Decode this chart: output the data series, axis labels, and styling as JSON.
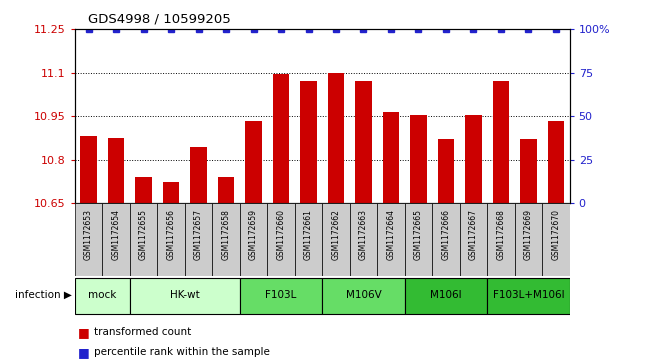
{
  "title": "GDS4998 / 10599205",
  "samples": [
    "GSM1172653",
    "GSM1172654",
    "GSM1172655",
    "GSM1172656",
    "GSM1172657",
    "GSM1172658",
    "GSM1172659",
    "GSM1172660",
    "GSM1172661",
    "GSM1172662",
    "GSM1172663",
    "GSM1172664",
    "GSM1172665",
    "GSM1172666",
    "GSM1172667",
    "GSM1172668",
    "GSM1172669",
    "GSM1172670"
  ],
  "bar_values": [
    10.88,
    10.875,
    10.74,
    10.725,
    10.845,
    10.74,
    10.935,
    11.095,
    11.07,
    11.1,
    11.07,
    10.965,
    10.955,
    10.87,
    10.955,
    11.07,
    10.87,
    10.935
  ],
  "percentile_values": [
    100,
    100,
    100,
    100,
    100,
    100,
    100,
    100,
    100,
    100,
    100,
    100,
    100,
    100,
    100,
    100,
    100,
    100
  ],
  "bar_color": "#cc0000",
  "percentile_color": "#2222cc",
  "ylim_left": [
    10.65,
    11.25
  ],
  "ylim_right": [
    0,
    100
  ],
  "yticks_left": [
    10.65,
    10.8,
    10.95,
    11.1,
    11.25
  ],
  "ytick_labels_left": [
    "10.65",
    "10.8",
    "10.95",
    "11.1",
    "11.25"
  ],
  "yticks_right": [
    0,
    25,
    50,
    75,
    100
  ],
  "ytick_labels_right": [
    "0",
    "25",
    "50",
    "75",
    "100%"
  ],
  "group_defs": [
    {
      "label": "mock",
      "indices": [
        0,
        1
      ],
      "color": "#ccffcc"
    },
    {
      "label": "HK-wt",
      "indices": [
        2,
        3,
        4,
        5
      ],
      "color": "#ccffcc"
    },
    {
      "label": "F103L",
      "indices": [
        6,
        7,
        8
      ],
      "color": "#66dd66"
    },
    {
      "label": "M106V",
      "indices": [
        9,
        10,
        11
      ],
      "color": "#66dd66"
    },
    {
      "label": "M106I",
      "indices": [
        12,
        13,
        14
      ],
      "color": "#33bb33"
    },
    {
      "label": "F103L+M106I",
      "indices": [
        15,
        16,
        17
      ],
      "color": "#33bb33"
    }
  ],
  "sample_box_color": "#cccccc",
  "infection_label": "infection",
  "legend_bar_label": "transformed count",
  "legend_pct_label": "percentile rank within the sample",
  "bar_width": 0.6,
  "background_color": "#ffffff",
  "axis_color_left": "#cc0000",
  "axis_color_right": "#2222cc"
}
